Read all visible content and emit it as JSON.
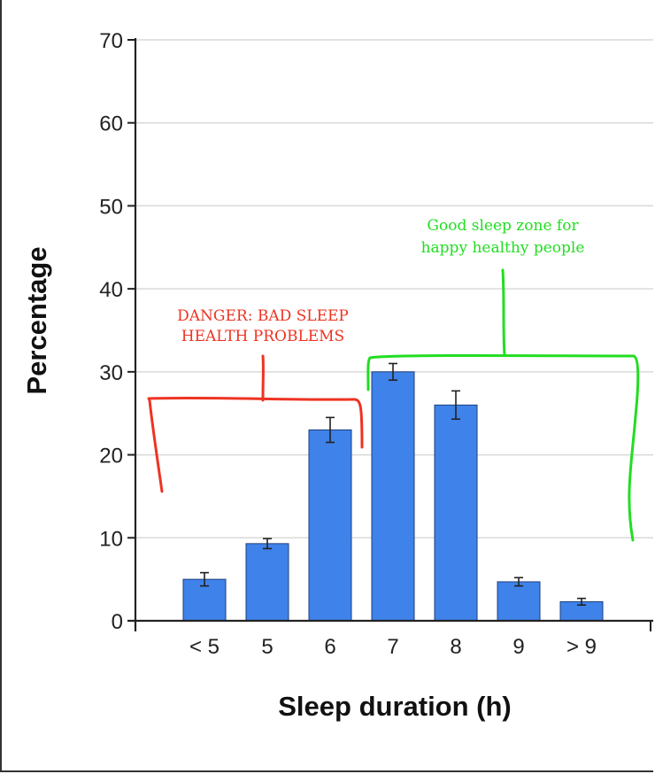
{
  "chart_data": {
    "type": "bar",
    "categories": [
      "< 5",
      "5",
      "6",
      "7",
      "8",
      "9",
      "> 9"
    ],
    "values": [
      5,
      9.3,
      23,
      30,
      26,
      4.7,
      2.3
    ],
    "error": [
      0.8,
      0.6,
      1.5,
      1.0,
      1.7,
      0.5,
      0.4
    ],
    "xlabel": "Sleep duration (h)",
    "ylabel": "Percentage",
    "ylim": [
      0,
      70
    ],
    "yticks": [
      0,
      10,
      20,
      30,
      40,
      50,
      60,
      70
    ],
    "grid": true,
    "bar_color": "#3f82ea",
    "annotations": [
      {
        "id": "danger",
        "lines": [
          "DANGER: BAD SLEEP",
          "HEALTH PROBLEMS"
        ],
        "color": "#ee3322",
        "spans": [
          "< 5",
          "6"
        ]
      },
      {
        "id": "good",
        "lines": [
          "Good sleep zone for",
          "happy healthy people"
        ],
        "color": "#22dd22",
        "spans": [
          "7",
          "> 9"
        ]
      }
    ]
  }
}
